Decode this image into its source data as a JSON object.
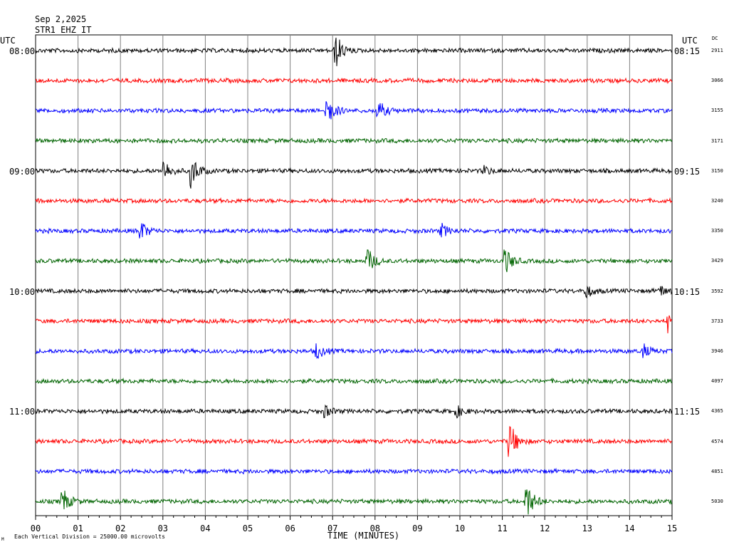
{
  "header": {
    "date": "Sep 2,2025",
    "station": "STR1 EHZ IT",
    "utc_left": "UTC",
    "utc_right": "UTC",
    "dc_label": "DC"
  },
  "footer": {
    "x_axis_label": "TIME (MINUTES)",
    "scale_note": "Each Vertical Division = 25000.00 microvolts",
    "corner_mark": "M"
  },
  "chart_data": {
    "type": "line",
    "title": "Sep 2,2025 STR1 EHZ IT",
    "xlabel": "TIME (MINUTES)",
    "xlim": [
      0,
      15
    ],
    "x_ticks": [
      "00",
      "01",
      "02",
      "03",
      "04",
      "05",
      "06",
      "07",
      "08",
      "09",
      "10",
      "11",
      "12",
      "13",
      "14",
      "15"
    ],
    "trace_colors": [
      "#000000",
      "#ff0000",
      "#0000ff",
      "#006400"
    ],
    "left_time_labels": [
      {
        "trace": 0,
        "text": "08:00"
      },
      {
        "trace": 4,
        "text": "09:00"
      },
      {
        "trace": 8,
        "text": "10:00"
      },
      {
        "trace": 12,
        "text": "11:00"
      }
    ],
    "right_time_labels": [
      {
        "trace": 0,
        "text": "08:15"
      },
      {
        "trace": 4,
        "text": "09:15"
      },
      {
        "trace": 8,
        "text": "10:15"
      },
      {
        "trace": 12,
        "text": "11:15"
      }
    ],
    "dc_values": [
      "2911",
      "3066",
      "3155",
      "3171",
      "3150",
      "3240",
      "3350",
      "3429",
      "3592",
      "3733",
      "3946",
      "4097",
      "4365",
      "4574",
      "4851",
      "5030"
    ],
    "events": [
      {
        "trace": 0,
        "minute": 7.05,
        "amp": 1.6
      },
      {
        "trace": 2,
        "minute": 6.85,
        "amp": 1.4
      },
      {
        "trace": 2,
        "minute": 8.05,
        "amp": 0.9
      },
      {
        "trace": 4,
        "minute": 3.0,
        "amp": 1.0
      },
      {
        "trace": 4,
        "minute": 3.65,
        "amp": 1.5
      },
      {
        "trace": 4,
        "minute": 10.55,
        "amp": 0.4
      },
      {
        "trace": 6,
        "minute": 2.45,
        "amp": 0.9
      },
      {
        "trace": 6,
        "minute": 9.55,
        "amp": 0.6
      },
      {
        "trace": 7,
        "minute": 7.8,
        "amp": 1.2
      },
      {
        "trace": 7,
        "minute": 11.05,
        "amp": 1.2
      },
      {
        "trace": 8,
        "minute": 12.95,
        "amp": 0.6
      },
      {
        "trace": 8,
        "minute": 14.7,
        "amp": 0.5
      },
      {
        "trace": 9,
        "minute": 14.9,
        "amp": 1.0
      },
      {
        "trace": 10,
        "minute": 6.6,
        "amp": 0.7
      },
      {
        "trace": 10,
        "minute": 14.3,
        "amp": 0.6
      },
      {
        "trace": 12,
        "minute": 6.8,
        "amp": 0.5
      },
      {
        "trace": 12,
        "minute": 9.9,
        "amp": 0.5
      },
      {
        "trace": 13,
        "minute": 11.15,
        "amp": 1.8
      },
      {
        "trace": 15,
        "minute": 0.6,
        "amp": 1.3
      },
      {
        "trace": 15,
        "minute": 11.55,
        "amp": 1.7
      }
    ]
  }
}
